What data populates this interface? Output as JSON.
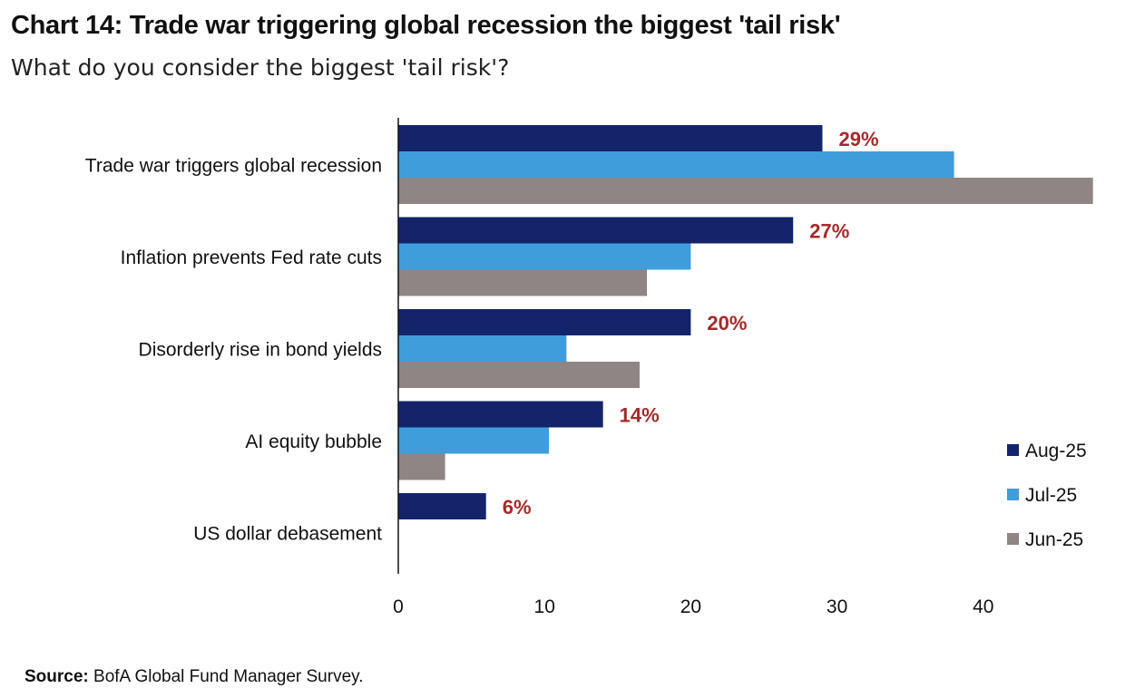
{
  "header": {
    "title": "Chart 14: Trade war triggering global recession the biggest 'tail risk'",
    "subtitle": "What do you consider the biggest 'tail risk'?"
  },
  "footer": {
    "source_label": "Source:",
    "source_text": "BofA Global Fund Manager Survey."
  },
  "chart_data": {
    "type": "bar",
    "orientation": "horizontal",
    "categories": [
      "Trade war triggers global recession",
      "Inflation prevents Fed rate cuts",
      "Disorderly rise in bond yields",
      "AI equity bubble",
      "US dollar debasement"
    ],
    "series": [
      {
        "name": "Aug-25",
        "color": "#14246b",
        "values": [
          29,
          27,
          20,
          14,
          6
        ]
      },
      {
        "name": "Jul-25",
        "color": "#3f9ddc",
        "values": [
          38,
          20,
          11.5,
          10.3,
          0
        ]
      },
      {
        "name": "Jun-25",
        "color": "#8e8584",
        "values": [
          47.5,
          17,
          16.5,
          3.2,
          0
        ]
      }
    ],
    "data_labels": [
      "29%",
      "27%",
      "20%",
      "14%",
      "6%"
    ],
    "x_ticks": [
      0,
      10,
      20,
      30,
      40
    ],
    "xlim": [
      0,
      47.5
    ],
    "grid": false,
    "legend_position": "bottom-right"
  }
}
